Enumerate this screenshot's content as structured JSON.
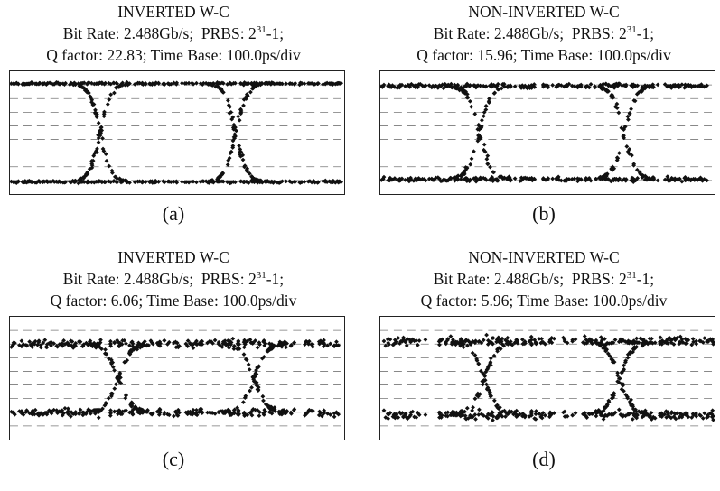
{
  "chart_data": [
    {
      "type": "scatter",
      "title": "INVERTED W-C",
      "bit_rate_label": "Bit Rate: 2.488Gb/s;",
      "prbs_label": "PRBS: 2",
      "prbs_exponent": "31",
      "prbs_suffix": "-1;",
      "q_factor_label": "Q factor: 22.83;",
      "time_base_label": "Time Base: 100.0ps/div",
      "panel_label": "(a)",
      "q_factor": 22.83,
      "eye": {
        "high_level": 0.9,
        "low_level": 0.1,
        "noise": 0.015,
        "crossings_ps": [
          100,
          250
        ]
      },
      "dashed_gridlines": true,
      "marker_color": "#111111"
    },
    {
      "type": "scatter",
      "title": "NON-INVERTED W-C",
      "bit_rate_label": "Bit Rate: 2.488Gb/s;",
      "prbs_label": "PRBS: 2",
      "prbs_exponent": "31",
      "prbs_suffix": "-1;",
      "q_factor_label": "Q factor: 15.96;",
      "time_base_label": "Time Base: 100.0ps/div",
      "panel_label": "(b)",
      "q_factor": 15.96,
      "eye": {
        "high_level": 0.88,
        "low_level": 0.12,
        "noise": 0.03,
        "crossings_ps": [
          110,
          270
        ]
      },
      "dashed_gridlines": true,
      "marker_color": "#111111"
    },
    {
      "type": "scatter",
      "title": "INVERTED W-C",
      "bit_rate_label": "Bit Rate: 2.488Gb/s;",
      "prbs_label": "PRBS: 2",
      "prbs_exponent": "31",
      "prbs_suffix": "-1;",
      "q_factor_label": "Q factor: 6.06;",
      "time_base_label": "Time Base: 100.0ps/div",
      "panel_label": "(c)",
      "q_factor": 6.06,
      "eye": {
        "high_level": 0.78,
        "low_level": 0.22,
        "noise": 0.05,
        "crossings_ps": [
          120,
          270
        ]
      },
      "dashed_gridlines": true,
      "marker_color": "#111111"
    },
    {
      "type": "scatter",
      "title": "NON-INVERTED W-C",
      "bit_rate_label": "Bit Rate: 2.488Gb/s;",
      "prbs_label": "PRBS: 2",
      "prbs_exponent": "31",
      "prbs_suffix": "-1;",
      "q_factor_label": "Q factor: 5.96;",
      "time_base_label": "Time Base: 100.0ps/div",
      "panel_label": "(d)",
      "q_factor": 5.96,
      "eye": {
        "high_level": 0.8,
        "low_level": 0.2,
        "noise": 0.06,
        "crossings_ps": [
          115,
          265
        ]
      },
      "dashed_gridlines": true,
      "marker_color": "#111111"
    }
  ]
}
